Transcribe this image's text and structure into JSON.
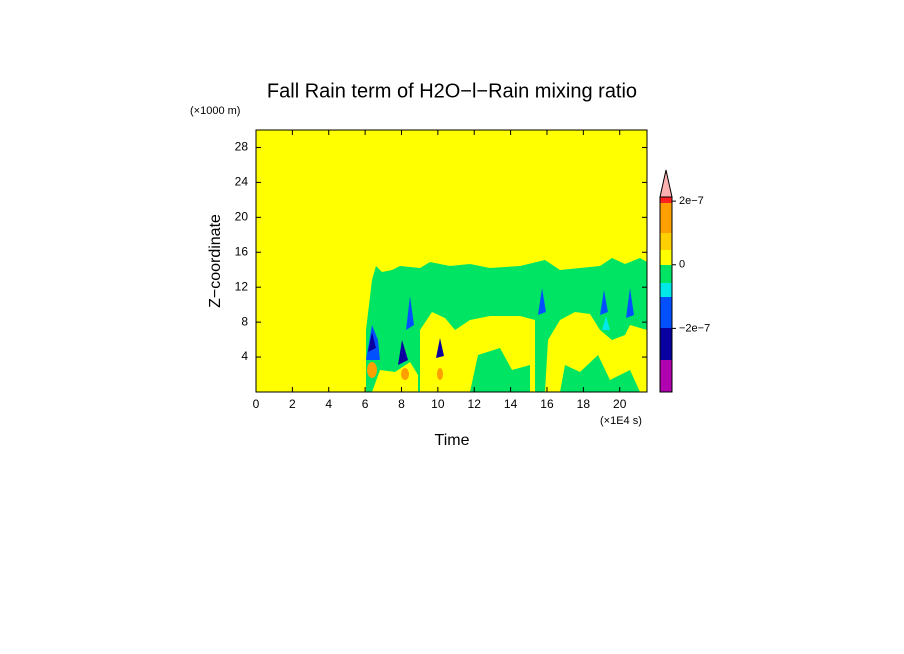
{
  "chart_data": {
    "type": "contour",
    "title": "Fall Rain term of H2O−l−Rain mixing ratio",
    "x_label": "Time",
    "y_label": "Z−coordinate",
    "x_unit": "(×1E4 s)",
    "y_unit": "(×1000 m)",
    "xlim": [
      0,
      21.5
    ],
    "ylim": [
      0,
      30
    ],
    "xticks": [
      0,
      2,
      4,
      6,
      8,
      10,
      12,
      14,
      16,
      18,
      20
    ],
    "yticks": [
      4,
      8,
      12,
      16,
      20,
      24,
      28
    ],
    "clim": [
      -4e-07,
      2.13e-07
    ],
    "cticks": [
      {
        "value": 2e-07,
        "label": "2e−7"
      },
      {
        "value": 0,
        "label": "0"
      },
      {
        "value": -2e-07,
        "label": "−2e−7"
      }
    ]
  }
}
